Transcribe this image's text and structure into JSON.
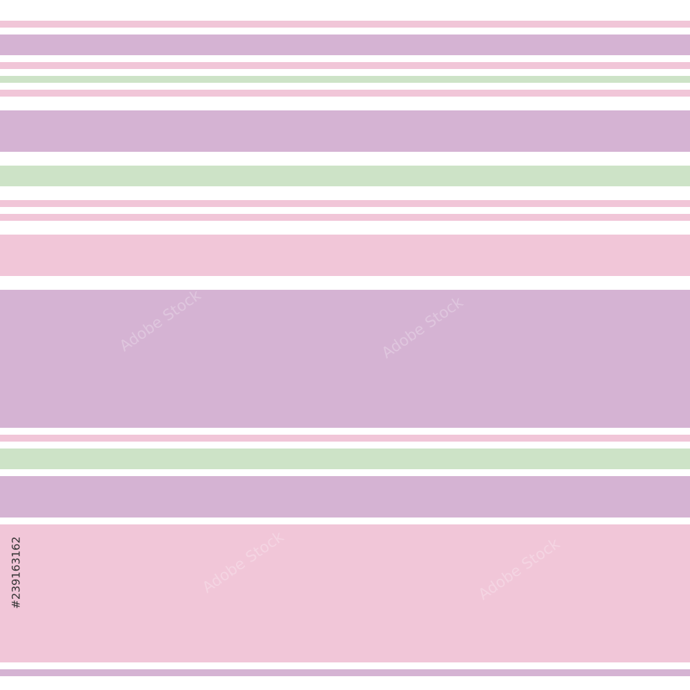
{
  "image_id": "#239163162",
  "watermark": "Adobe Stock"
}
